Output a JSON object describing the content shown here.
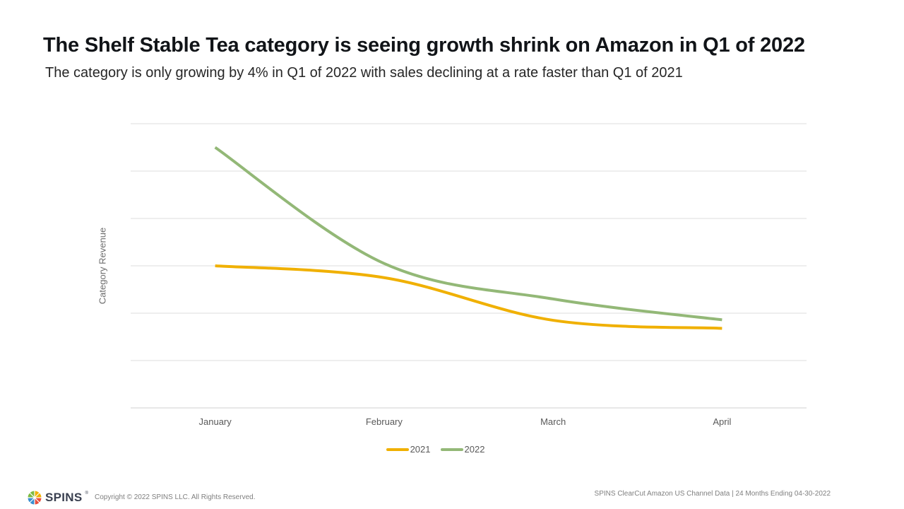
{
  "slide": {
    "title": "The Shelf Stable Tea category is seeing growth shrink on Amazon in Q1 of 2022",
    "subtitle": "The category is only growing by 4% in Q1 of 2022 with sales declining at a rate faster than Q1 of 2021"
  },
  "chart_data": {
    "type": "line",
    "title": "",
    "xlabel": "",
    "ylabel": "Category Revenue",
    "categories": [
      "January",
      "February",
      "March",
      "April"
    ],
    "ylim": [
      0,
      6
    ],
    "grid": true,
    "y_tick_labels_shown": false,
    "legend_position": "bottom",
    "series": [
      {
        "name": "2021",
        "color": "#f0b000",
        "values": [
          3.0,
          2.75,
          1.85,
          1.68
        ]
      },
      {
        "name": "2022",
        "color": "#93b877",
        "values": [
          5.5,
          3.05,
          2.3,
          1.86
        ]
      }
    ]
  },
  "footer": {
    "logo_text": "SPINS",
    "logo_tm": "®",
    "copyright": "Copyright © 2022 SPINS LLC. All Rights Reserved.",
    "source": "SPINS ClearCut Amazon US Channel Data | 24 Months Ending 04-30-2022"
  }
}
